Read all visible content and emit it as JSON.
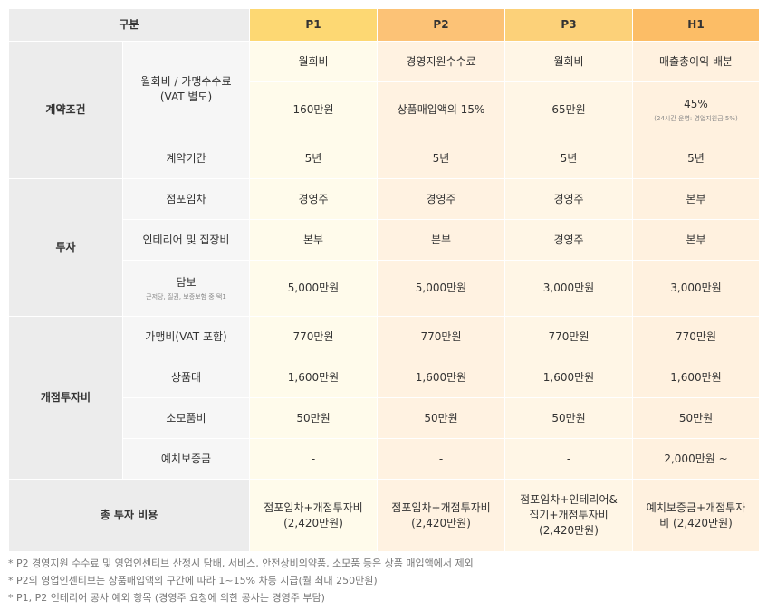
{
  "header": {
    "label": "구분",
    "cols": [
      "P1",
      "P2",
      "P3",
      "H1"
    ]
  },
  "groups": {
    "contract": "계약조건",
    "invest": "투자",
    "opening": "개점투자비",
    "total": "총 투자 비용"
  },
  "rows": {
    "fee_label": "월회비 / 가맹수수료\n(VAT 별도)",
    "fee_type": [
      "월회비",
      "경영지원수수료",
      "월회비",
      "매출총이익 배분"
    ],
    "fee_value": [
      "160만원",
      "상품매입액의 15%",
      "65만원",
      "45%"
    ],
    "fee_value_h1_note": "(24시간 운영: 영업지원금 5%)",
    "term_label": "계약기간",
    "term": [
      "5년",
      "5년",
      "5년",
      "5년"
    ],
    "lease_label": "점포임차",
    "lease": [
      "경영주",
      "경영주",
      "경영주",
      "본부"
    ],
    "interior_label": "인테리어 및 집장비",
    "interior": [
      "본부",
      "본부",
      "경영주",
      "본부"
    ],
    "collateral_label": "담보",
    "collateral_note": "근저당, 질권, 보증보험 중 택1",
    "collateral": [
      "5,000만원",
      "5,000만원",
      "3,000만원",
      "3,000만원"
    ],
    "franchise_label": "가맹비(VAT 포함)",
    "franchise": [
      "770만원",
      "770만원",
      "770만원",
      "770만원"
    ],
    "goods_label": "상품대",
    "goods": [
      "1,600만원",
      "1,600만원",
      "1,600만원",
      "1,600만원"
    ],
    "supplies_label": "소모품비",
    "supplies": [
      "50만원",
      "50만원",
      "50만원",
      "50만원"
    ],
    "deposit_label": "예치보증금",
    "deposit": [
      "-",
      "-",
      "-",
      "2,000만원 ~"
    ],
    "total": [
      "점포임차+개점투자비\n(2,420만원)",
      "점포임차+개점투자비\n(2,420만원)",
      "점포임차+인테리어&\n집기+개점투자비\n(2,420만원)",
      "예치보증금+개점투자\n비 (2,420만원)"
    ]
  },
  "notes": [
    "* P2 경영지원 수수료 및 영업인센티브 산정시 담배, 서비스, 안전상비의약품, 소모품 등은 상품 매입액에서 제외",
    "* P2의 영업인센티브는 상품매입액의 구간에 따라 1~15% 차등 지급(월 최대 250만원)",
    "* P1, P2 인테리어 공사 예외 항목 (경영주 요청에 의한 공사는 경영주 부담)"
  ]
}
